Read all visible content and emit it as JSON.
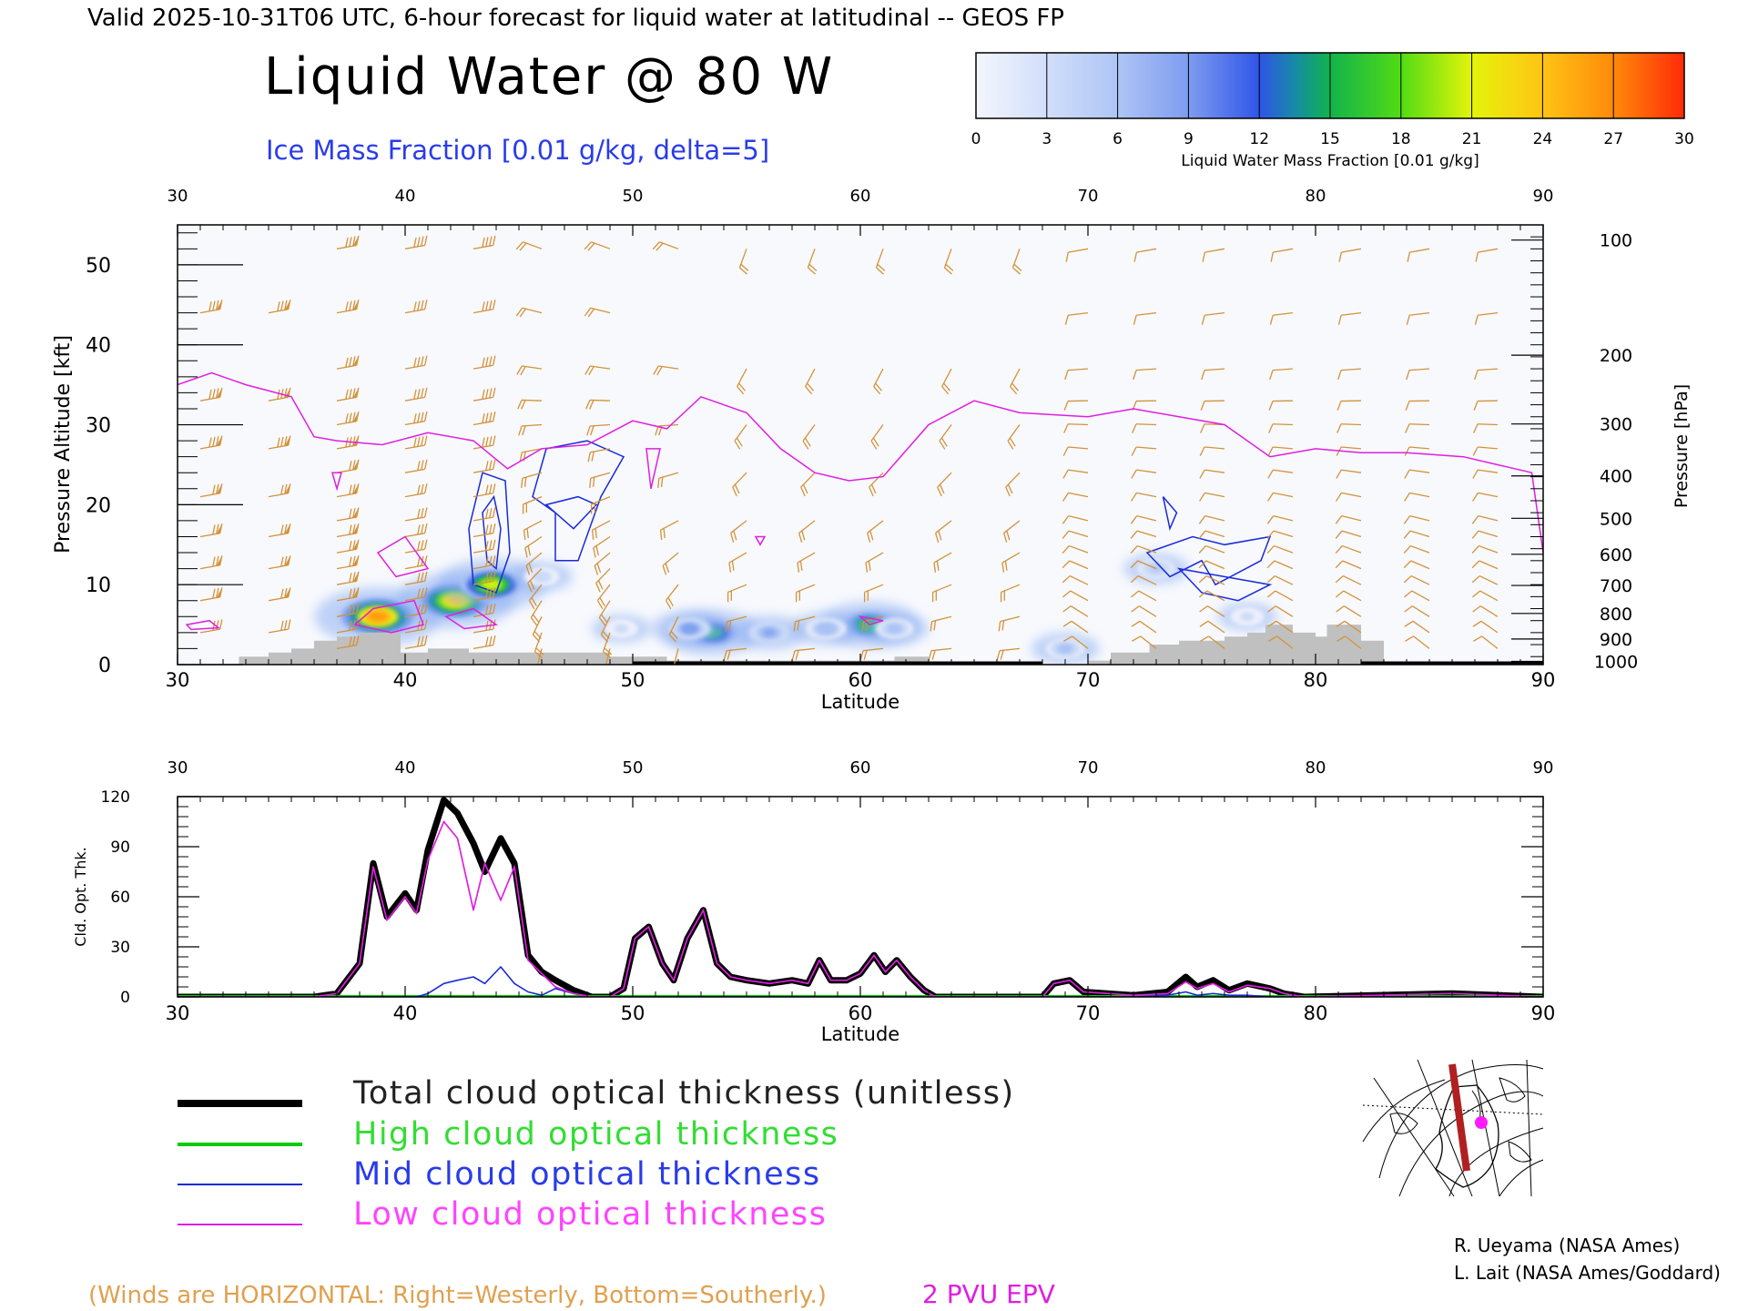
{
  "header": {
    "valid_line": "Valid 2025-10-31T06 UTC, 6-hour forecast for liquid water at latitudinal -- GEOS FP",
    "title": "Liquid Water @ 80 W",
    "subtitle": "Ice Mass Fraction [0.01 g/kg, delta=5]"
  },
  "colorbar": {
    "ticks": [
      "0",
      "3",
      "6",
      "9",
      "12",
      "15",
      "18",
      "21",
      "24",
      "27",
      "30"
    ],
    "label": "Liquid Water Mass Fraction [0.01 g/kg]",
    "colors": [
      "#eef1fb",
      "#cbdaf7",
      "#a9c2f4",
      "#7f9ff0",
      "#3c62e6",
      "#1f8fb0",
      "#19b85a",
      "#58d91c",
      "#d6f20a",
      "#ffd21a",
      "#ff9d0c",
      "#ff3a08"
    ]
  },
  "colors": {
    "wind": "#d4923a",
    "epv": "#e01ee0",
    "ice": "#1a2ad8",
    "terrain": "#c0c0c0",
    "total": "#000000",
    "high": "#00cc00",
    "mid": "#1a2ad8",
    "low": "#e01ee0"
  },
  "chart_data": [
    {
      "type": "heatmap",
      "title": "Liquid Water @ 80 W",
      "xlabel": "Latitude",
      "ylabel": "Pressure Altitude [kft]",
      "y2label": "Pressure [hPa]",
      "xlim": [
        30,
        90
      ],
      "ylim": [
        0,
        55
      ],
      "x_ticks": [
        "30",
        "40",
        "50",
        "60",
        "70",
        "80",
        "90"
      ],
      "y_ticks": [
        "0",
        "10",
        "20",
        "30",
        "40",
        "50"
      ],
      "pressure_ticks": [
        "100",
        "200",
        "300",
        "400",
        "500",
        "600",
        "700",
        "800",
        "900",
        "1000"
      ],
      "grid": false,
      "epv_2pvu_line": {
        "lat": [
          30,
          31.5,
          33,
          35,
          36,
          37,
          39,
          41,
          43,
          44.5,
          46,
          48,
          50,
          51.5,
          53,
          55,
          56.5,
          58,
          59.5,
          61,
          63,
          65,
          67,
          70,
          72,
          74,
          76,
          78,
          80,
          82,
          84,
          86.5,
          88,
          89.5,
          90
        ],
        "kft": [
          35,
          36.5,
          35,
          33.5,
          28.5,
          28,
          27.5,
          29,
          28,
          24.5,
          27,
          27.5,
          30.5,
          29.5,
          33.5,
          31.5,
          27,
          24,
          23,
          23.5,
          30,
          33,
          31.5,
          31,
          32,
          31,
          30,
          26,
          27,
          26.5,
          26.5,
          26,
          25,
          24,
          14
        ]
      },
      "liquid_water_patches": [
        {
          "lat": 38.8,
          "kft": 6,
          "value": 27
        },
        {
          "lat": 42.2,
          "kft": 8,
          "value": 24
        },
        {
          "lat": 43.8,
          "kft": 10,
          "value": 21
        },
        {
          "lat": 53.5,
          "kft": 4,
          "value": 16
        },
        {
          "lat": 52.5,
          "kft": 4.5,
          "value": 9
        },
        {
          "lat": 56,
          "kft": 4,
          "value": 8
        },
        {
          "lat": 60.4,
          "kft": 5,
          "value": 17
        },
        {
          "lat": 58.5,
          "kft": 4.5,
          "value": 7
        },
        {
          "lat": 61.5,
          "kft": 4.5,
          "value": 6
        },
        {
          "lat": 46,
          "kft": 11,
          "value": 4
        },
        {
          "lat": 49.5,
          "kft": 4.5,
          "value": 3
        },
        {
          "lat": 69,
          "kft": 2,
          "value": 6
        },
        {
          "lat": 73,
          "kft": 12,
          "value": 5
        },
        {
          "lat": 77,
          "kft": 6,
          "value": 3
        }
      ],
      "terrain": {
        "lat": [
          30,
          32.7,
          32.7,
          34,
          34,
          35,
          35,
          36,
          36,
          37,
          37,
          38,
          38,
          39.8,
          39.8,
          41,
          41,
          42.8,
          42.8,
          49,
          49,
          51.5,
          51.5,
          61.5,
          61.5,
          63,
          63,
          70,
          70,
          71,
          71,
          72.7,
          72.7,
          74,
          74,
          76,
          76,
          77,
          77,
          77.8,
          77.8,
          79,
          79,
          80,
          80,
          80.5,
          80.5,
          82,
          82,
          83,
          83,
          90
        ],
        "kft": [
          0,
          0,
          1,
          1,
          1.5,
          1.5,
          2,
          2,
          3,
          3,
          3.5,
          3.5,
          4,
          4,
          1.5,
          1.5,
          2,
          2,
          1.5,
          1.5,
          1,
          1,
          0.5,
          0.5,
          1,
          1,
          0,
          0,
          0.5,
          0.5,
          1.5,
          1.5,
          2.5,
          2.5,
          3,
          3,
          3.5,
          3.5,
          4,
          4,
          5,
          5,
          4,
          4,
          3.5,
          3.5,
          5,
          5,
          3,
          3,
          0,
          0
        ]
      }
    },
    {
      "type": "line",
      "xlabel": "Latitude",
      "ylabel": "Cld. Opt. Thk.",
      "xlim": [
        30,
        90
      ],
      "ylim": [
        0,
        120
      ],
      "x_ticks": [
        "30",
        "40",
        "50",
        "60",
        "70",
        "80",
        "90"
      ],
      "y_ticks": [
        "0",
        "30",
        "60",
        "90",
        "120"
      ],
      "x": [
        30,
        36,
        37,
        38,
        38.6,
        39.2,
        40,
        40.5,
        41,
        41.7,
        42.3,
        43,
        43.5,
        44.2,
        44.8,
        45.4,
        46,
        46.6,
        47.4,
        48.2,
        49,
        49.6,
        50.1,
        50.7,
        51.3,
        51.8,
        52.4,
        53.1,
        53.7,
        54.3,
        55,
        56,
        57,
        57.7,
        58.2,
        58.7,
        59.4,
        60,
        60.6,
        61.1,
        61.6,
        62.2,
        62.8,
        63.3,
        64,
        68,
        68.5,
        69.2,
        69.8,
        72,
        73.5,
        74.3,
        74.8,
        75.5,
        76.2,
        77,
        78,
        78.6,
        79.5,
        86,
        90
      ],
      "series": [
        {
          "name": "Total cloud optical thickness (unitless)",
          "values": [
            0,
            0,
            2,
            20,
            80,
            48,
            62,
            52,
            88,
            118,
            110,
            92,
            75,
            95,
            80,
            25,
            15,
            10,
            4,
            0,
            0,
            5,
            35,
            42,
            20,
            10,
            35,
            52,
            20,
            12,
            10,
            8,
            10,
            8,
            22,
            10,
            10,
            14,
            25,
            15,
            22,
            12,
            4,
            0,
            0,
            0,
            8,
            10,
            3,
            1,
            3,
            12,
            6,
            10,
            4,
            8,
            5,
            2,
            0,
            2,
            0
          ]
        },
        {
          "name": "High cloud optical thickness",
          "values": [
            0,
            0,
            0,
            0,
            0,
            0,
            0,
            0,
            0,
            0,
            0,
            0,
            0,
            0,
            0,
            0,
            0,
            0,
            0,
            0,
            0,
            0,
            0,
            0,
            0,
            0,
            0,
            0,
            0,
            0,
            0,
            0,
            0,
            0,
            0,
            0,
            0,
            0,
            0,
            0,
            0,
            0,
            0,
            0,
            0,
            0,
            0,
            0,
            0,
            0,
            0,
            0,
            0,
            0,
            0,
            0,
            0,
            0,
            0,
            0,
            0
          ]
        },
        {
          "name": "Mid cloud optical thickness",
          "values": [
            0,
            0,
            0,
            0,
            0,
            0,
            0,
            0,
            2,
            8,
            10,
            12,
            8,
            18,
            8,
            3,
            1,
            5,
            2,
            0,
            0,
            0,
            0,
            0,
            0,
            0,
            0,
            0,
            0,
            0,
            0,
            0,
            0,
            0,
            0,
            0,
            0,
            0,
            0,
            0,
            0,
            0,
            0,
            0,
            0,
            0,
            0,
            0,
            0,
            0,
            1,
            3,
            1,
            2,
            1,
            1,
            0,
            0,
            0,
            0,
            0
          ]
        },
        {
          "name": "Low cloud optical thickness",
          "values": [
            0,
            0,
            2,
            20,
            78,
            46,
            60,
            50,
            82,
            105,
            95,
            52,
            80,
            58,
            78,
            22,
            14,
            6,
            2,
            0,
            0,
            5,
            35,
            42,
            20,
            10,
            35,
            52,
            20,
            12,
            10,
            8,
            10,
            8,
            22,
            10,
            10,
            14,
            25,
            15,
            22,
            12,
            4,
            0,
            0,
            0,
            8,
            10,
            3,
            1,
            2,
            9,
            5,
            8,
            3,
            7,
            5,
            2,
            0,
            2,
            0
          ]
        }
      ]
    }
  ],
  "legend": {
    "total": "Total cloud optical thickness (unitless)",
    "high": "High cloud optical thickness",
    "mid": "Mid cloud optical thickness",
    "low": "Low cloud optical thickness"
  },
  "footer": {
    "winds_note": "(Winds are HORIZONTAL: Right=Westerly, Bottom=Southerly.)",
    "epv_label": "2 PVU EPV",
    "credit_1": "R. Ueyama (NASA Ames)",
    "credit_2": "L. Lait (NASA Ames/Goddard)"
  },
  "locator_map": {
    "icon": "north-america-polar-map",
    "route": "80 W transect",
    "route_color": "#b02020",
    "dot_color": "#ff1aff"
  }
}
